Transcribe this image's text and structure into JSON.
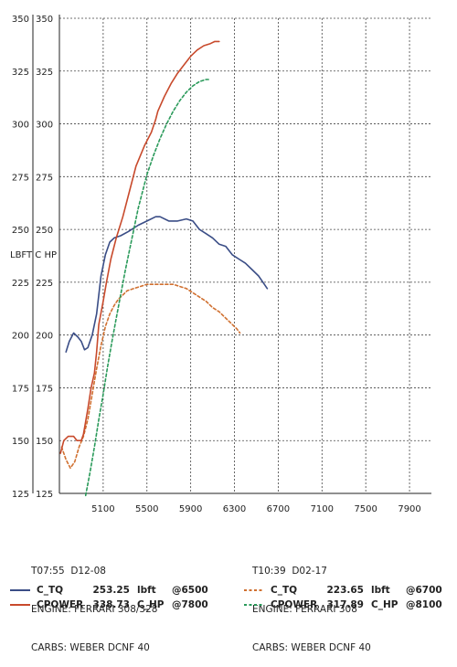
{
  "chart_data": {
    "type": "line",
    "ylabel": "LBFT C HP",
    "y_ticks": [
      "125",
      "150",
      "175",
      "200",
      "225",
      "250",
      "275",
      "300",
      "325",
      "350"
    ],
    "x_ticks": [
      "5100",
      "5500",
      "5900",
      "6300",
      "6700",
      "7100",
      "7500",
      "7900"
    ],
    "xlim": [
      4700,
      8100
    ],
    "ylim": [
      125,
      350
    ],
    "grid": true,
    "series": [
      {
        "name": "C_TQ",
        "color": "#3a4d86",
        "dash": false,
        "points": [
          [
            4760,
            192
          ],
          [
            4790,
            197
          ],
          [
            4830,
            201
          ],
          [
            4870,
            199
          ],
          [
            4900,
            197
          ],
          [
            4930,
            193
          ],
          [
            4960,
            194
          ],
          [
            5000,
            200
          ],
          [
            5040,
            210
          ],
          [
            5080,
            228
          ],
          [
            5120,
            238
          ],
          [
            5160,
            244
          ],
          [
            5200,
            246
          ],
          [
            5260,
            247
          ],
          [
            5330,
            249
          ],
          [
            5420,
            252
          ],
          [
            5500,
            254
          ],
          [
            5580,
            256
          ],
          [
            5620,
            256
          ],
          [
            5700,
            254
          ],
          [
            5780,
            254
          ],
          [
            5860,
            255
          ],
          [
            5920,
            254
          ],
          [
            5980,
            250
          ],
          [
            6040,
            248
          ],
          [
            6100,
            246
          ],
          [
            6160,
            243
          ],
          [
            6220,
            242
          ],
          [
            6280,
            238
          ],
          [
            6340,
            236
          ],
          [
            6400,
            234
          ],
          [
            6460,
            231
          ],
          [
            6520,
            228
          ],
          [
            6560,
            225
          ],
          [
            6600,
            222
          ]
        ]
      },
      {
        "name": "C_TQ",
        "color": "#d07030",
        "dash": true,
        "points": [
          [
            4720,
            147
          ],
          [
            4760,
            141
          ],
          [
            4800,
            137
          ],
          [
            4840,
            140
          ],
          [
            4880,
            147
          ],
          [
            4920,
            152
          ],
          [
            4960,
            160
          ],
          [
            5000,
            172
          ],
          [
            5040,
            184
          ],
          [
            5080,
            195
          ],
          [
            5120,
            204
          ],
          [
            5160,
            210
          ],
          [
            5200,
            214
          ],
          [
            5240,
            217
          ],
          [
            5280,
            219
          ],
          [
            5320,
            221
          ],
          [
            5380,
            222
          ],
          [
            5440,
            223
          ],
          [
            5500,
            224
          ],
          [
            5560,
            224
          ],
          [
            5620,
            224
          ],
          [
            5680,
            224
          ],
          [
            5740,
            224
          ],
          [
            5800,
            223
          ],
          [
            5860,
            222
          ],
          [
            5920,
            220
          ],
          [
            5980,
            218
          ],
          [
            6040,
            216
          ],
          [
            6100,
            213
          ],
          [
            6160,
            211
          ],
          [
            6220,
            208
          ],
          [
            6280,
            205
          ],
          [
            6320,
            203
          ],
          [
            6350,
            201
          ]
        ]
      },
      {
        "name": "CPOWER",
        "color": "#c84a2c",
        "dash": false,
        "points": [
          [
            4710,
            144
          ],
          [
            4740,
            150
          ],
          [
            4780,
            152
          ],
          [
            4830,
            152
          ],
          [
            4860,
            150
          ],
          [
            4900,
            150
          ],
          [
            4920,
            153
          ],
          [
            4960,
            165
          ],
          [
            4990,
            175
          ],
          [
            5020,
            182
          ],
          [
            5040,
            192
          ],
          [
            5060,
            205
          ],
          [
            5100,
            216
          ],
          [
            5130,
            225
          ],
          [
            5170,
            236
          ],
          [
            5220,
            246
          ],
          [
            5280,
            256
          ],
          [
            5340,
            268
          ],
          [
            5400,
            280
          ],
          [
            5480,
            290
          ],
          [
            5540,
            296
          ],
          [
            5580,
            302
          ],
          [
            5600,
            306
          ],
          [
            5660,
            313
          ],
          [
            5720,
            319
          ],
          [
            5780,
            324
          ],
          [
            5840,
            328
          ],
          [
            5900,
            332
          ],
          [
            5960,
            335
          ],
          [
            6020,
            337
          ],
          [
            6080,
            338
          ],
          [
            6120,
            339
          ],
          [
            6160,
            339
          ]
        ]
      },
      {
        "name": "CPOWER",
        "color": "#2a9a5a",
        "dash": true,
        "points": [
          [
            4940,
            124
          ],
          [
            4980,
            135
          ],
          [
            5020,
            147
          ],
          [
            5060,
            160
          ],
          [
            5100,
            172
          ],
          [
            5140,
            185
          ],
          [
            5180,
            197
          ],
          [
            5220,
            208
          ],
          [
            5260,
            219
          ],
          [
            5300,
            230
          ],
          [
            5340,
            240
          ],
          [
            5380,
            250
          ],
          [
            5420,
            260
          ],
          [
            5460,
            268
          ],
          [
            5500,
            276
          ],
          [
            5560,
            285
          ],
          [
            5620,
            293
          ],
          [
            5680,
            300
          ],
          [
            5740,
            306
          ],
          [
            5800,
            311
          ],
          [
            5860,
            315
          ],
          [
            5920,
            318
          ],
          [
            5980,
            320
          ],
          [
            6040,
            321
          ],
          [
            6080,
            321
          ]
        ]
      }
    ]
  },
  "info": {
    "left": {
      "line1": "T07:55  D12-08",
      "line2": "ENGINE: FERRARI 308/328",
      "line3": "CARBS: WEBER DCNF 40"
    },
    "right": {
      "line1": "T10:39  D02-17",
      "line2": "ENGINE: FERRARI 308",
      "line3": "CARBS: WEBER DCNF 40"
    }
  },
  "legend": [
    {
      "label": "C_TQ",
      "value": "253.25",
      "unit": "lbft",
      "at": "@6500",
      "color": "#3a4d86",
      "dash": false
    },
    {
      "label": "CPOWER",
      "value": "338.73",
      "unit": "C_HP",
      "at": "@7800",
      "color": "#c84a2c",
      "dash": false
    },
    {
      "label": "C_TQ",
      "value": "223.65",
      "unit": "lbft",
      "at": "@6700",
      "color": "#d07030",
      "dash": true
    },
    {
      "label": "CPOWER",
      "value": "317.89",
      "unit": "C_HP",
      "at": "@8100",
      "color": "#2a9a5a",
      "dash": true
    }
  ]
}
